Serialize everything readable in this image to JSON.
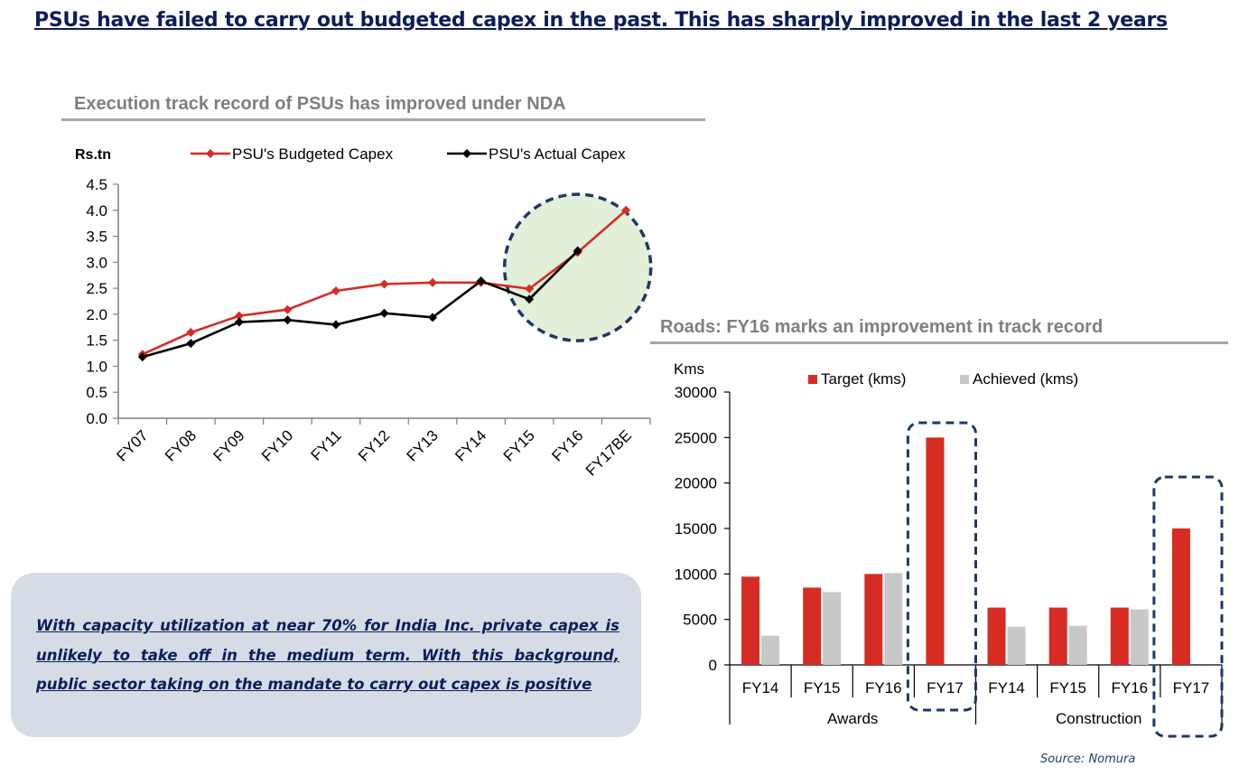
{
  "page": {
    "title": "PSUs have failed to carry out budgeted capex in the past. This has sharply improved in the last 2 years",
    "note": "With capacity utilization at near 70% for India Inc. private capex is unlikely to take off in the medium term. With this background, public sector taking on the mandate to carry out capex is positive",
    "source": "Source: Nomura"
  },
  "chart_data": [
    {
      "type": "line",
      "title": "Execution track record of PSUs has improved under NDA",
      "ylabel": "Rs.tn",
      "xlabel": "",
      "categories": [
        "FY07",
        "FY08",
        "FY09",
        "FY10",
        "FY11",
        "FY12",
        "FY13",
        "FY14",
        "FY15",
        "FY16",
        "FY17BE"
      ],
      "series": [
        {
          "name": "PSU's Budgeted Capex",
          "color": "#d62c24",
          "values": [
            1.23,
            1.65,
            1.97,
            2.09,
            2.45,
            2.58,
            2.61,
            2.61,
            2.49,
            3.19,
            4.0
          ]
        },
        {
          "name": "PSU's Actual Capex",
          "color": "#000000",
          "values": [
            1.18,
            1.44,
            1.85,
            1.89,
            1.8,
            2.02,
            1.94,
            2.64,
            2.29,
            3.22,
            null
          ]
        }
      ],
      "ylim": [
        0,
        4.5
      ],
      "yticks": [
        "4.5",
        "4.0",
        "3.5",
        "3.0",
        "2.5",
        "2.0",
        "1.5",
        "1.0",
        "0.5",
        "0.0"
      ],
      "grid": false,
      "legend": "top",
      "highlight": {
        "type": "dashed-circle",
        "categories": [
          "FY15",
          "FY16",
          "FY17BE"
        ],
        "fill": "#e2f0d9",
        "stroke": "#1f3864"
      }
    },
    {
      "type": "bar",
      "title": "Roads: FY16 marks an improvement in track record",
      "ylabel": "Kms",
      "xlabel": "",
      "groups": [
        {
          "name": "Awards",
          "categories": [
            "FY14",
            "FY15",
            "FY16",
            "FY17"
          ]
        },
        {
          "name": "Construction",
          "categories": [
            "FY14",
            "FY15",
            "FY16",
            "FY17"
          ]
        }
      ],
      "series": [
        {
          "name": "Target (kms)",
          "color": "#d62c24",
          "values": [
            9700,
            8500,
            10000,
            25000,
            6300,
            6300,
            6300,
            15000
          ]
        },
        {
          "name": "Achieved (kms)",
          "color": "#c8c8c8",
          "values": [
            3200,
            8000,
            10100,
            null,
            4200,
            4300,
            6100,
            null
          ]
        }
      ],
      "ylim": [
        0,
        30000
      ],
      "yticks": [
        "30000",
        "25000",
        "20000",
        "15000",
        "10000",
        "5000",
        "0"
      ],
      "grid": false,
      "legend": "top",
      "highlight": {
        "type": "dashed-box",
        "categories": [
          "FY17 (Awards)",
          "FY17 (Construction)"
        ],
        "stroke": "#1f3864"
      }
    }
  ]
}
